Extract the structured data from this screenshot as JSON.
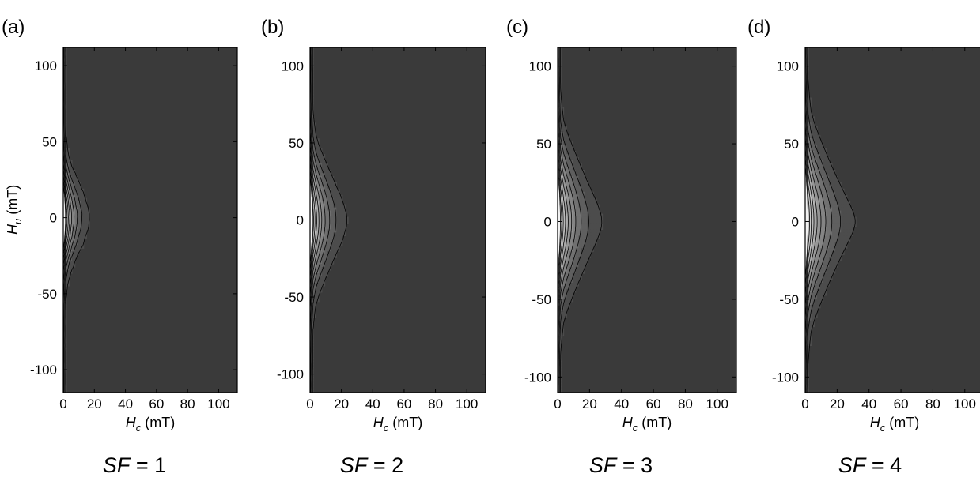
{
  "chart_data": [
    {
      "type": "heatmap",
      "panel_label": "(a)",
      "caption_var": "SF",
      "caption_value": "= 1",
      "xlabel_var": "H",
      "xlabel_sub": "c",
      "xlabel_unit": " (mT)",
      "ylabel_var": "H",
      "ylabel_sub": "u",
      "ylabel_unit": " (mT)",
      "xlim": [
        0,
        112
      ],
      "ylim": [
        -115,
        112
      ],
      "xticks": [
        0,
        20,
        40,
        60,
        80,
        100
      ],
      "xtick_labels": [
        "0",
        "20",
        "40",
        "60",
        "80",
        "100"
      ],
      "yticks": [
        100,
        50,
        0,
        -50,
        -100
      ],
      "ytick_labels": [
        "100",
        "50",
        "0",
        "-50",
        "-100"
      ],
      "levels": 10,
      "peak": {
        "x": 0,
        "y": 0
      },
      "spread": {
        "h": 0.14,
        "u_base": 3.5,
        "u_growth": 0.45
      },
      "noise": 0.45
    },
    {
      "type": "heatmap",
      "panel_label": "(b)",
      "caption_var": "SF",
      "caption_value": "= 2",
      "xlabel_var": "H",
      "xlabel_sub": "c",
      "xlabel_unit": " (mT)",
      "xlim": [
        0,
        112
      ],
      "ylim": [
        -112,
        112
      ],
      "xticks": [
        0,
        20,
        40,
        60,
        80,
        100
      ],
      "xtick_labels": [
        "0",
        "20",
        "40",
        "60",
        "80",
        "100"
      ],
      "yticks": [
        100,
        50,
        0,
        -50,
        -100
      ],
      "ytick_labels": [
        "100",
        "50",
        "0",
        "-50",
        "-100"
      ],
      "levels": 10,
      "peak": {
        "x": 0,
        "y": 0
      },
      "spread": {
        "h": 0.1,
        "u_base": 5,
        "u_growth": 0.6
      },
      "noise": 0.12
    },
    {
      "type": "heatmap",
      "panel_label": "(c)",
      "caption_var": "SF",
      "caption_value": "= 3",
      "xlabel_var": "H",
      "xlabel_sub": "c",
      "xlabel_unit": " (mT)",
      "xlim": [
        0,
        112
      ],
      "ylim": [
        -110,
        112
      ],
      "xticks": [
        0,
        20,
        40,
        60,
        80,
        100
      ],
      "xtick_labels": [
        "0",
        "20",
        "40",
        "60",
        "80",
        "100"
      ],
      "yticks": [
        100,
        50,
        0,
        -50,
        -100
      ],
      "ytick_labels": [
        "100",
        "50",
        "0",
        "-50",
        "-100"
      ],
      "levels": 10,
      "peak": {
        "x": 0,
        "y": 0
      },
      "spread": {
        "h": 0.085,
        "u_base": 6,
        "u_growth": 0.7
      },
      "noise": 0.04
    },
    {
      "type": "heatmap",
      "panel_label": "(d)",
      "caption_var": "SF",
      "caption_value": "= 4",
      "xlabel_var": "H",
      "xlabel_sub": "c",
      "xlabel_unit": " (mT)",
      "xlim": [
        0,
        112
      ],
      "ylim": [
        -110,
        112
      ],
      "xticks": [
        0,
        20,
        40,
        60,
        80,
        100
      ],
      "xtick_labels": [
        "0",
        "20",
        "40",
        "60",
        "80",
        "100"
      ],
      "yticks": [
        100,
        50,
        0,
        -50,
        -100
      ],
      "ytick_labels": [
        "100",
        "50",
        "0",
        "-50",
        "-100"
      ],
      "levels": 10,
      "peak": {
        "x": 0,
        "y": 0
      },
      "spread": {
        "h": 0.075,
        "u_base": 6.5,
        "u_growth": 0.75
      },
      "noise": 0.0
    }
  ],
  "colors": {
    "background_level": "#3a3a3a",
    "peak_level": "#f2f2f2",
    "contour_line": "#000000",
    "frame": "#000000"
  }
}
